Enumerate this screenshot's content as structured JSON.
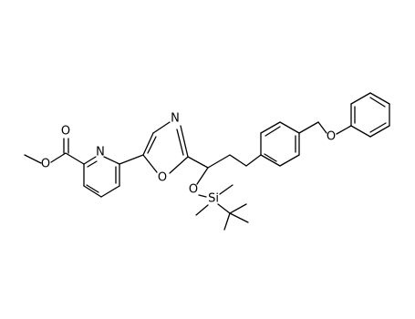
{
  "atoms": [
    {
      "label": "O"
    },
    {
      "label": "O"
    },
    {
      "label": "N"
    },
    {
      "label": "N"
    },
    {
      "label": "O"
    },
    {
      "label": "O"
    },
    {
      "label": "Si"
    },
    {
      "label": "O"
    }
  ]
}
